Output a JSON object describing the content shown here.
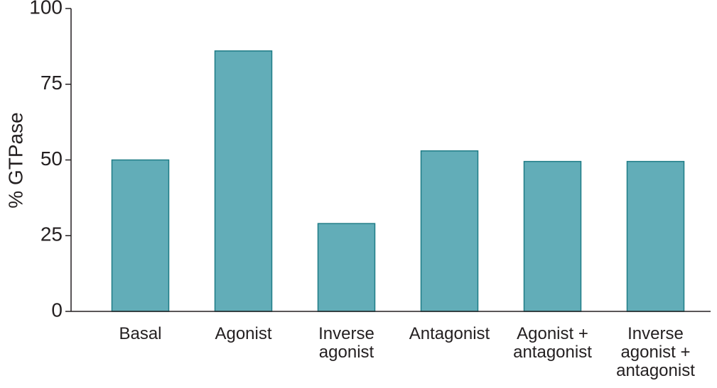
{
  "chart_data": {
    "type": "bar",
    "y_label": "% GTPase",
    "categories": [
      "Basal",
      "Agonist",
      "Inverse agonist",
      "Antagonist",
      "Agonist + antagonist",
      "Inverse agonist + antagonist"
    ],
    "values": [
      50,
      86,
      29,
      53,
      49.5,
      49.5
    ],
    "color": "#62adb8",
    "ylim": [
      0,
      100
    ],
    "yticks": [
      0,
      25,
      50,
      75,
      100
    ],
    "grid": false
  }
}
